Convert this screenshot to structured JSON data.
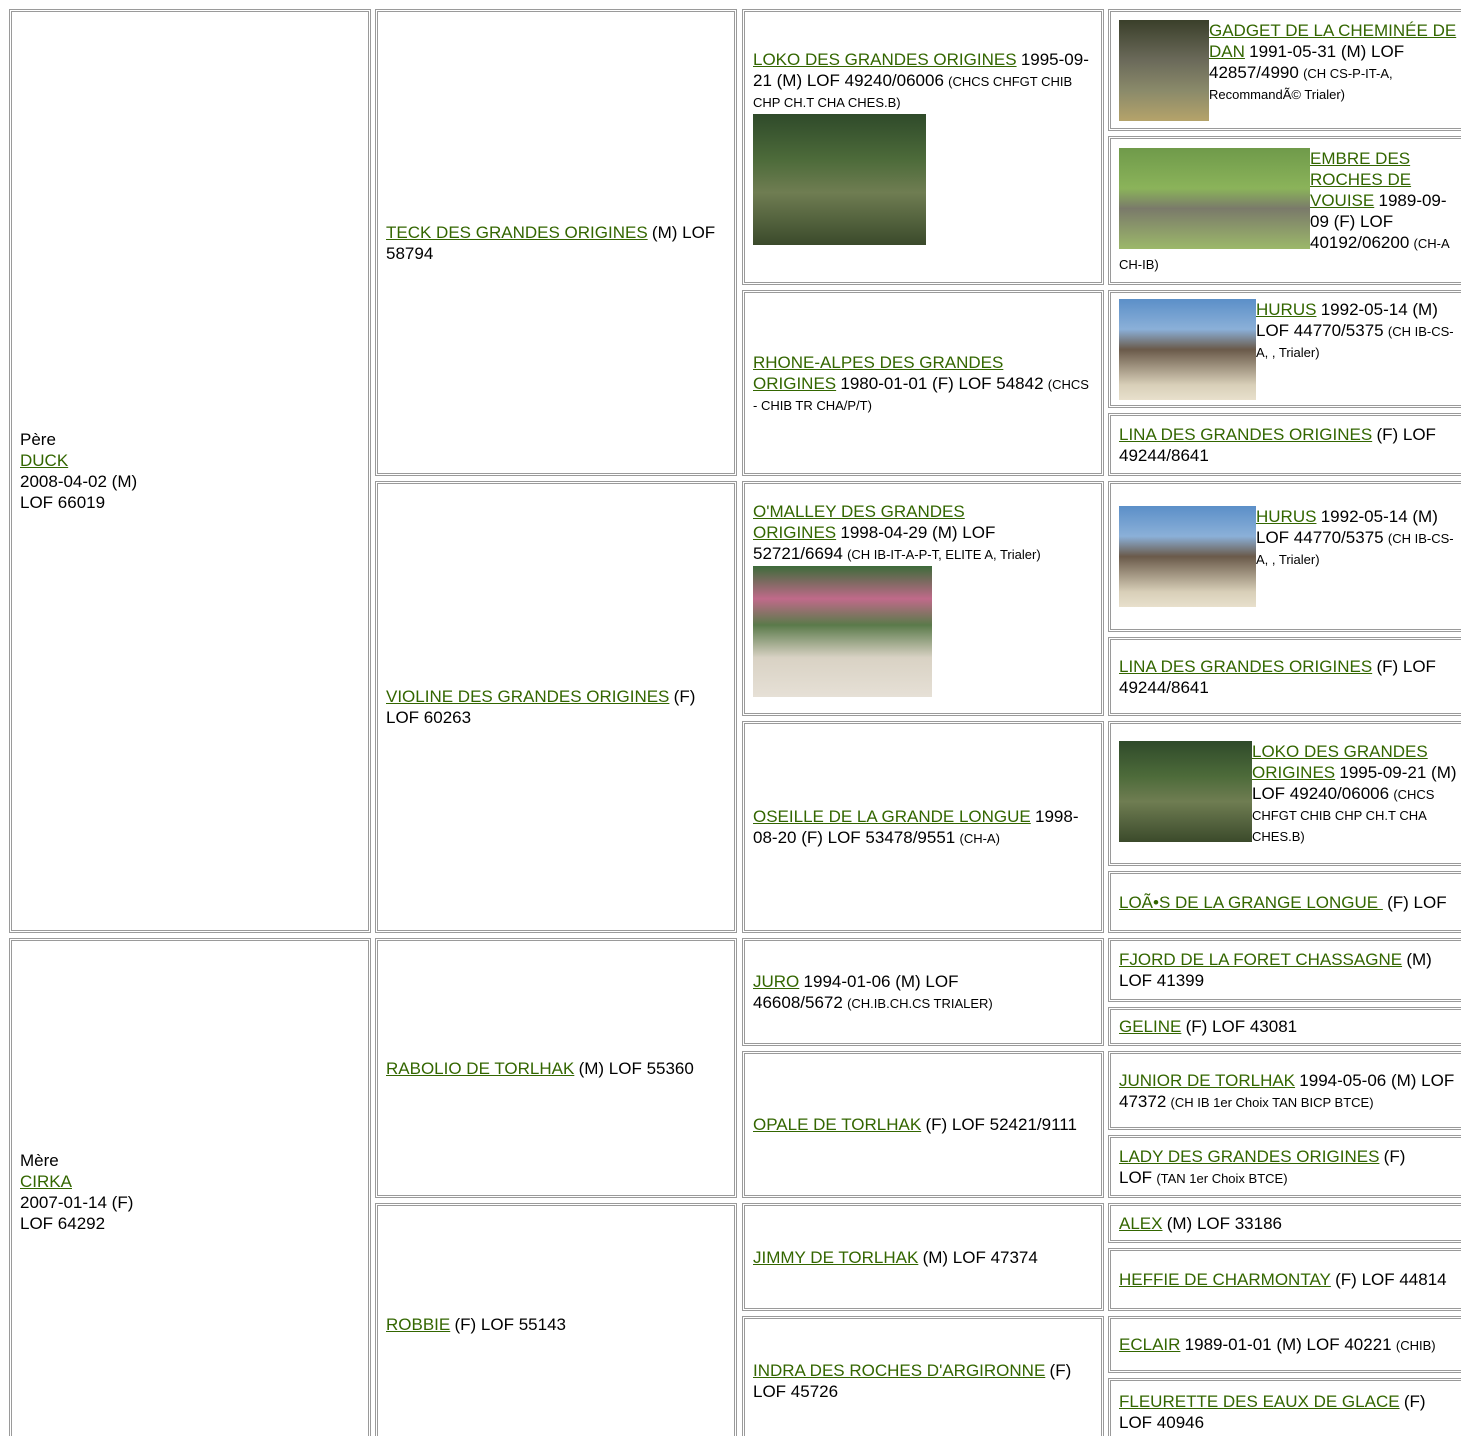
{
  "gen1": [
    {
      "role": "Père",
      "name": "DUCK",
      "lines": [
        "2008-04-02 (M)",
        "LOF 66019"
      ]
    },
    {
      "role": "Mère",
      "name": "CIRKA",
      "lines": [
        "2007-01-14 (F)",
        "LOF 64292"
      ]
    }
  ],
  "gen2": [
    {
      "name": "TECK DES GRANDES ORIGINES",
      "info": "(M) LOF 58794"
    },
    {
      "name": "VIOLINE DES GRANDES ORIGINES",
      "info": "(F) LOF 60263"
    },
    {
      "name": "RABOLIO DE TORLHAK",
      "info": "(M) LOF 55360"
    },
    {
      "name": "ROBBIE",
      "info": "(F) LOF 55143"
    }
  ],
  "gen3": [
    {
      "name": "LOKO DES GRANDES ORIGINES",
      "info": "1995-09-21 (M) LOF 49240/06006",
      "note": "(CHCS CHFGT CHIB CHP CH.T CHA CHES.B)"
    },
    {
      "name": "RHONE-ALPES DES GRANDES ORIGINES",
      "info": "1980-01-01 (F) LOF 54842",
      "note": "(CHCS - CHIB TR CHA/P/T)"
    },
    {
      "name": "O'MALLEY DES GRANDES ORIGINES",
      "info": "1998-04-29 (M) LOF 52721/6694",
      "note": "(CH IB-IT-A-P-T, ELITE A, Trialer)"
    },
    {
      "name": "OSEILLE DE LA GRANDE LONGUE",
      "info": "1998-08-20 (F) LOF 53478/9551",
      "note": "(CH-A)"
    },
    {
      "name": "JURO",
      "info": "1994-01-06 (M) LOF 46608/5672",
      "note": "(CH.IB.CH.CS TRIALER)"
    },
    {
      "name": "OPALE DE TORLHAK",
      "info": "(F) LOF 52421/9111"
    },
    {
      "name": "JIMMY DE TORLHAK",
      "info": "(M) LOF 47374"
    },
    {
      "name": "INDRA DES ROCHES D'ARGIRONNE",
      "info": "(F) LOF 45726"
    }
  ],
  "gen4": [
    {
      "name": "GADGET DE LA CHEMINÉE DE DAN",
      "info": "1991-05-31 (M) LOF 42857/4990",
      "note": "(CH CS-P-IT-A, RecommandÃ© Trialer)"
    },
    {
      "name": "EMBRE DES ROCHES DE VOUISE",
      "info": "1989-09-09 (F) LOF 40192/06200",
      "note": "(CH-A CH-IB)"
    },
    {
      "name": "HURUS",
      "info": "1992-05-14 (M) LOF 44770/5375",
      "note": "(CH IB-CS-A, , Trialer)"
    },
    {
      "name": "LINA DES GRANDES ORIGINES",
      "info": "(F) LOF 49244/8641"
    },
    {
      "name": "HURUS",
      "info": "1992-05-14 (M) LOF 44770/5375",
      "note": "(CH IB-CS-A, , Trialer)"
    },
    {
      "name": "LINA DES GRANDES ORIGINES",
      "info": "(F) LOF 49244/8641"
    },
    {
      "name": "LOKO DES GRANDES ORIGINES",
      "info": "1995-09-21 (M) LOF 49240/06006",
      "note": "(CHCS CHFGT CHIB CHP CH.T CHA CHES.B)"
    },
    {
      "name": "LOÃ•S DE LA GRANGE LONGUE ",
      "info": "(F) LOF"
    },
    {
      "name": "FJORD DE LA FORET CHASSAGNE",
      "info": "(M) LOF 41399"
    },
    {
      "name": "GELINE",
      "info": "(F) LOF 43081"
    },
    {
      "name": "JUNIOR DE TORLHAK",
      "info": "1994-05-06 (M) LOF 47372",
      "note": "(CH IB 1er Choix TAN BICP BTCE)"
    },
    {
      "name": "LADY DES GRANDES ORIGINES",
      "info": "(F) LOF",
      "note": "(TAN 1er Choix BTCE)"
    },
    {
      "name": "ALEX",
      "info": "(M) LOF 33186"
    },
    {
      "name": "HEFFIE DE CHARMONTAY",
      "info": "(F) LOF 44814"
    },
    {
      "name": "ECLAIR",
      "info": "1989-01-01 (M) LOF 40221",
      "note": "(CHIB)"
    },
    {
      "name": "FLEURETTE DES EAUX DE GLACE",
      "info": "(F) LOF 40946"
    }
  ]
}
